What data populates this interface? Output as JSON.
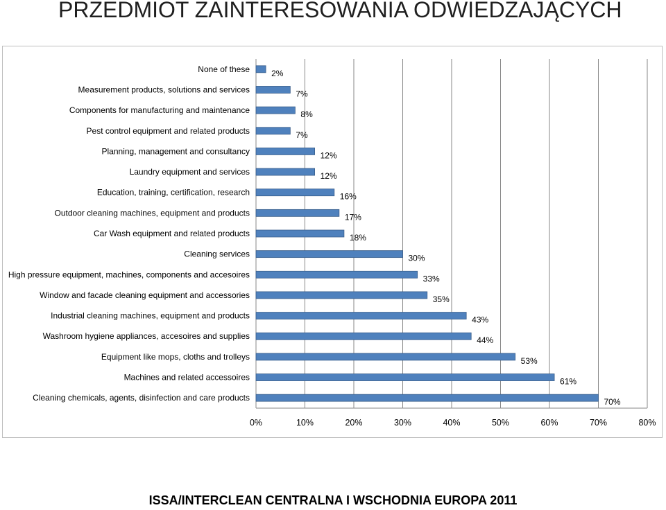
{
  "title": "PRZEDMIOT ZAINTERESOWANIA ODWIEDZAJĄCYCH",
  "footer": "ISSA/INTERCLEAN CENTRALNA I WSCHODNIA EUROPA 2011",
  "colors": {
    "bar": "#4f81bd",
    "bar_edge": "#385d8a",
    "grid": "#878787"
  },
  "chart_data": {
    "type": "bar",
    "orientation": "horizontal",
    "title": "",
    "xlabel": "",
    "ylabel": "",
    "xlim": [
      0,
      80
    ],
    "x_ticks": [
      "0%",
      "10%",
      "20%",
      "30%",
      "40%",
      "50%",
      "60%",
      "70%",
      "80%"
    ],
    "grid": true,
    "legend": "none",
    "categories": [
      "None of these",
      "Measurement products, solutions and services",
      "Components for manufacturing and maintenance",
      "Pest control equipment and related products",
      "Planning, management and consultancy",
      "Laundry equipment and services",
      "Education, training, certification, research",
      "Outdoor cleaning machines, equipment and products",
      "Car Wash equipment and related products",
      "Cleaning services",
      "High pressure equipment, machines, components and accesoires",
      "Window and facade cleaning equipment and accessories",
      "Industrial cleaning machines, equipment and products",
      "Washroom hygiene appliances, accesoires and supplies",
      "Equipment like mops, cloths and trolleys",
      "Machines and related accessoires",
      "Cleaning chemicals, agents, disinfection and care products"
    ],
    "values": [
      2,
      7,
      8,
      7,
      12,
      12,
      16,
      17,
      18,
      30,
      33,
      35,
      43,
      44,
      53,
      61,
      70
    ],
    "data_labels": [
      "2%",
      "7%",
      "8%",
      "7%",
      "12%",
      "12%",
      "16%",
      "17%",
      "18%",
      "30%",
      "33%",
      "35%",
      "43%",
      "44%",
      "53%",
      "61%",
      "70%"
    ]
  }
}
